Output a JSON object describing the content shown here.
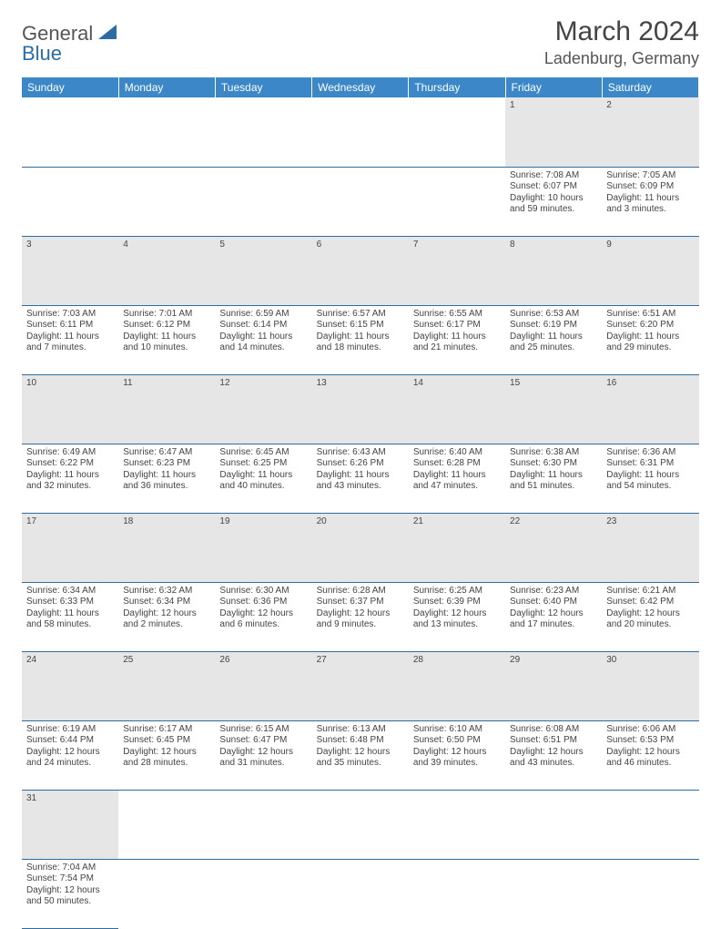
{
  "logo": {
    "general": "General",
    "blue": "Blue"
  },
  "title": "March 2024",
  "location": "Ladenburg, Germany",
  "colors": {
    "header_bg": "#3b87c8",
    "daynum_bg": "#e6e6e6",
    "row_border": "#2b6ca3",
    "text": "#444444"
  },
  "day_headers": [
    "Sunday",
    "Monday",
    "Tuesday",
    "Wednesday",
    "Thursday",
    "Friday",
    "Saturday"
  ],
  "weeks": [
    [
      null,
      null,
      null,
      null,
      null,
      {
        "n": "1",
        "sunrise": "7:08 AM",
        "sunset": "6:07 PM",
        "dl1": "Daylight: 10 hours",
        "dl2": "and 59 minutes."
      },
      {
        "n": "2",
        "sunrise": "7:05 AM",
        "sunset": "6:09 PM",
        "dl1": "Daylight: 11 hours",
        "dl2": "and 3 minutes."
      }
    ],
    [
      {
        "n": "3",
        "sunrise": "7:03 AM",
        "sunset": "6:11 PM",
        "dl1": "Daylight: 11 hours",
        "dl2": "and 7 minutes."
      },
      {
        "n": "4",
        "sunrise": "7:01 AM",
        "sunset": "6:12 PM",
        "dl1": "Daylight: 11 hours",
        "dl2": "and 10 minutes."
      },
      {
        "n": "5",
        "sunrise": "6:59 AM",
        "sunset": "6:14 PM",
        "dl1": "Daylight: 11 hours",
        "dl2": "and 14 minutes."
      },
      {
        "n": "6",
        "sunrise": "6:57 AM",
        "sunset": "6:15 PM",
        "dl1": "Daylight: 11 hours",
        "dl2": "and 18 minutes."
      },
      {
        "n": "7",
        "sunrise": "6:55 AM",
        "sunset": "6:17 PM",
        "dl1": "Daylight: 11 hours",
        "dl2": "and 21 minutes."
      },
      {
        "n": "8",
        "sunrise": "6:53 AM",
        "sunset": "6:19 PM",
        "dl1": "Daylight: 11 hours",
        "dl2": "and 25 minutes."
      },
      {
        "n": "9",
        "sunrise": "6:51 AM",
        "sunset": "6:20 PM",
        "dl1": "Daylight: 11 hours",
        "dl2": "and 29 minutes."
      }
    ],
    [
      {
        "n": "10",
        "sunrise": "6:49 AM",
        "sunset": "6:22 PM",
        "dl1": "Daylight: 11 hours",
        "dl2": "and 32 minutes."
      },
      {
        "n": "11",
        "sunrise": "6:47 AM",
        "sunset": "6:23 PM",
        "dl1": "Daylight: 11 hours",
        "dl2": "and 36 minutes."
      },
      {
        "n": "12",
        "sunrise": "6:45 AM",
        "sunset": "6:25 PM",
        "dl1": "Daylight: 11 hours",
        "dl2": "and 40 minutes."
      },
      {
        "n": "13",
        "sunrise": "6:43 AM",
        "sunset": "6:26 PM",
        "dl1": "Daylight: 11 hours",
        "dl2": "and 43 minutes."
      },
      {
        "n": "14",
        "sunrise": "6:40 AM",
        "sunset": "6:28 PM",
        "dl1": "Daylight: 11 hours",
        "dl2": "and 47 minutes."
      },
      {
        "n": "15",
        "sunrise": "6:38 AM",
        "sunset": "6:30 PM",
        "dl1": "Daylight: 11 hours",
        "dl2": "and 51 minutes."
      },
      {
        "n": "16",
        "sunrise": "6:36 AM",
        "sunset": "6:31 PM",
        "dl1": "Daylight: 11 hours",
        "dl2": "and 54 minutes."
      }
    ],
    [
      {
        "n": "17",
        "sunrise": "6:34 AM",
        "sunset": "6:33 PM",
        "dl1": "Daylight: 11 hours",
        "dl2": "and 58 minutes."
      },
      {
        "n": "18",
        "sunrise": "6:32 AM",
        "sunset": "6:34 PM",
        "dl1": "Daylight: 12 hours",
        "dl2": "and 2 minutes."
      },
      {
        "n": "19",
        "sunrise": "6:30 AM",
        "sunset": "6:36 PM",
        "dl1": "Daylight: 12 hours",
        "dl2": "and 6 minutes."
      },
      {
        "n": "20",
        "sunrise": "6:28 AM",
        "sunset": "6:37 PM",
        "dl1": "Daylight: 12 hours",
        "dl2": "and 9 minutes."
      },
      {
        "n": "21",
        "sunrise": "6:25 AM",
        "sunset": "6:39 PM",
        "dl1": "Daylight: 12 hours",
        "dl2": "and 13 minutes."
      },
      {
        "n": "22",
        "sunrise": "6:23 AM",
        "sunset": "6:40 PM",
        "dl1": "Daylight: 12 hours",
        "dl2": "and 17 minutes."
      },
      {
        "n": "23",
        "sunrise": "6:21 AM",
        "sunset": "6:42 PM",
        "dl1": "Daylight: 12 hours",
        "dl2": "and 20 minutes."
      }
    ],
    [
      {
        "n": "24",
        "sunrise": "6:19 AM",
        "sunset": "6:44 PM",
        "dl1": "Daylight: 12 hours",
        "dl2": "and 24 minutes."
      },
      {
        "n": "25",
        "sunrise": "6:17 AM",
        "sunset": "6:45 PM",
        "dl1": "Daylight: 12 hours",
        "dl2": "and 28 minutes."
      },
      {
        "n": "26",
        "sunrise": "6:15 AM",
        "sunset": "6:47 PM",
        "dl1": "Daylight: 12 hours",
        "dl2": "and 31 minutes."
      },
      {
        "n": "27",
        "sunrise": "6:13 AM",
        "sunset": "6:48 PM",
        "dl1": "Daylight: 12 hours",
        "dl2": "and 35 minutes."
      },
      {
        "n": "28",
        "sunrise": "6:10 AM",
        "sunset": "6:50 PM",
        "dl1": "Daylight: 12 hours",
        "dl2": "and 39 minutes."
      },
      {
        "n": "29",
        "sunrise": "6:08 AM",
        "sunset": "6:51 PM",
        "dl1": "Daylight: 12 hours",
        "dl2": "and 43 minutes."
      },
      {
        "n": "30",
        "sunrise": "6:06 AM",
        "sunset": "6:53 PM",
        "dl1": "Daylight: 12 hours",
        "dl2": "and 46 minutes."
      }
    ],
    [
      {
        "n": "31",
        "sunrise": "7:04 AM",
        "sunset": "7:54 PM",
        "dl1": "Daylight: 12 hours",
        "dl2": "and 50 minutes."
      },
      null,
      null,
      null,
      null,
      null,
      null
    ]
  ],
  "labels": {
    "sunrise_prefix": "Sunrise: ",
    "sunset_prefix": "Sunset: "
  }
}
